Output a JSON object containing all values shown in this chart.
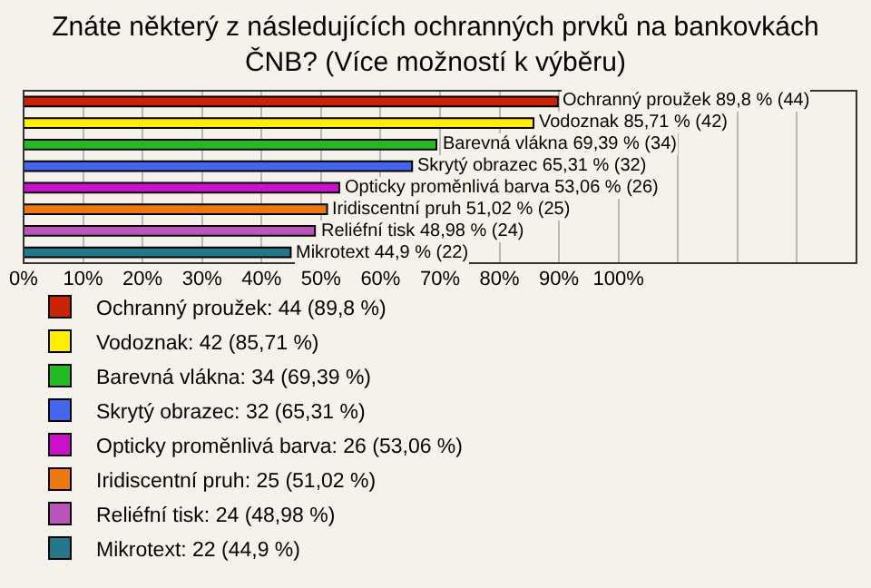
{
  "chart_data": {
    "type": "bar",
    "orientation": "horizontal",
    "title": "Znáte některý z následujících ochranných prvků na bankovkách ČNB? (Více možností k výběru)",
    "categories": [
      null,
      null,
      null,
      null,
      null,
      null,
      null,
      null
    ],
    "series": [
      {
        "name": "Ochranný proužek: 44 (89,8 %)",
        "color": "#cc2200",
        "values": [
          89.8,
          null,
          null,
          null,
          null,
          null,
          null,
          null
        ],
        "value_labels": [
          "Ochranný proužek 89,8 % (44)",
          null,
          null,
          null,
          null,
          null,
          null,
          null
        ]
      },
      {
        "name": "Vodoznak: 42 (85,71 %)",
        "color": "#ffee00",
        "values": [
          null,
          85.71,
          null,
          null,
          null,
          null,
          null,
          null
        ],
        "value_labels": [
          null,
          "Vodoznak 85,71 % (42)",
          null,
          null,
          null,
          null,
          null,
          null
        ]
      },
      {
        "name": "Barevná vlákna: 34 (69,39 %)",
        "color": "#22bb22",
        "values": [
          null,
          null,
          69.39,
          null,
          null,
          null,
          null,
          null
        ],
        "value_labels": [
          null,
          null,
          "Barevná vlákna 69,39 % (34)",
          null,
          null,
          null,
          null,
          null
        ]
      },
      {
        "name": "Skrytý obrazec: 32 (65,31 %)",
        "color": "#4466ee",
        "values": [
          null,
          null,
          null,
          65.31,
          null,
          null,
          null,
          null
        ],
        "value_labels": [
          null,
          null,
          null,
          "Skrytý obrazec 65,31 % (32)",
          null,
          null,
          null,
          null
        ]
      },
      {
        "name": "Opticky proměnlivá barva: 26 (53,06 %)",
        "color": "#cc11cc",
        "values": [
          null,
          null,
          null,
          null,
          53.06,
          null,
          null,
          null
        ],
        "value_labels": [
          null,
          null,
          null,
          null,
          "Opticky proměnlivá barva 53,06 % (26)",
          null,
          null,
          null
        ]
      },
      {
        "name": "Iridiscentní pruh: 25 (51,02 %)",
        "color": "#ee7711",
        "values": [
          null,
          null,
          null,
          null,
          null,
          51.02,
          null,
          null
        ],
        "value_labels": [
          null,
          null,
          null,
          null,
          null,
          "Iridiscentní pruh 51,02 % (25)",
          null,
          null
        ]
      },
      {
        "name": "Reliéfní tisk: 24 (48,98 %)",
        "color": "#bb55bb",
        "values": [
          null,
          null,
          null,
          null,
          null,
          null,
          48.98,
          null
        ],
        "value_labels": [
          null,
          null,
          null,
          null,
          null,
          null,
          "Reliéfní tisk 48,98 % (24)",
          null
        ]
      },
      {
        "name": "Mikrotext: 22 (44,9 %)",
        "color": "#227788",
        "values": [
          null,
          null,
          null,
          null,
          null,
          null,
          null,
          44.9
        ],
        "value_labels": [
          null,
          null,
          null,
          null,
          null,
          null,
          null,
          "Mikrotext 44,9 % (22)"
        ]
      }
    ],
    "xlim": [
      0,
      140
    ],
    "xticks": [
      {
        "value": 0,
        "label": "0%"
      },
      {
        "value": 10,
        "label": "10%"
      },
      {
        "value": 20,
        "label": "20%"
      },
      {
        "value": 30,
        "label": "30%"
      },
      {
        "value": 40,
        "label": "40%"
      },
      {
        "value": 50,
        "label": "50%"
      },
      {
        "value": 60,
        "label": "60%"
      },
      {
        "value": 70,
        "label": "70%"
      },
      {
        "value": 80,
        "label": "80%"
      },
      {
        "value": 90,
        "label": "90%"
      },
      {
        "value": 100,
        "label": "100%"
      },
      {
        "value": 110,
        "label": null
      },
      {
        "value": 120,
        "label": null
      },
      {
        "value": 130,
        "label": null
      },
      {
        "value": 140,
        "label": null
      }
    ],
    "grid": "x",
    "legend": "bottom",
    "tick_labels": "x"
  }
}
